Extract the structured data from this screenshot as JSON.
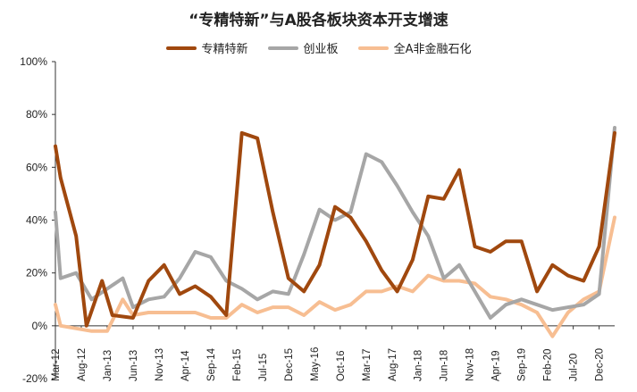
{
  "chart_data": {
    "type": "line",
    "title": "“专精特新”与A股各板块资本开支增速",
    "xlabel": "",
    "ylabel": "",
    "ylim": [
      -20,
      100
    ],
    "yticks": [
      "-20%",
      "0%",
      "20%",
      "40%",
      "60%",
      "80%",
      "100%"
    ],
    "ytick_values": [
      -20,
      0,
      20,
      40,
      60,
      80,
      100
    ],
    "x_tick_labels": [
      "Mar-12",
      "Aug-12",
      "Jan-13",
      "Jun-13",
      "Nov-13",
      "Apr-14",
      "Sep-14",
      "Feb-15",
      "Jul-15",
      "Dec-15",
      "May-16",
      "Oct-16",
      "Mar-17",
      "Aug-17",
      "Jan-18",
      "Jun-18",
      "Nov-18",
      "Apr-19",
      "Sep-19",
      "Feb-20",
      "Jul-20",
      "Dec-20"
    ],
    "x_tick_positions": [
      0,
      5,
      10,
      15,
      20,
      25,
      30,
      35,
      40,
      45,
      50,
      55,
      60,
      65,
      70,
      75,
      80,
      85,
      90,
      95,
      100,
      105
    ],
    "x_max": 108,
    "legend_position": "top-center",
    "grid": false,
    "series": [
      {
        "name": "专精特新",
        "color": "#A0480E",
        "x": [
          0,
          1,
          4,
          6,
          9,
          11,
          15,
          18,
          21,
          24,
          27,
          30,
          33,
          36,
          39,
          42,
          45,
          48,
          51,
          54,
          57,
          60,
          63,
          66,
          69,
          72,
          75,
          78,
          81,
          84,
          87,
          90,
          93,
          96,
          99,
          102,
          105,
          108
        ],
        "y": [
          68,
          56,
          34,
          0,
          17,
          4,
          3,
          17,
          23,
          12,
          15,
          11,
          4,
          73,
          71,
          43,
          18,
          13,
          23,
          45,
          41,
          32,
          21,
          13,
          25,
          49,
          48,
          59,
          30,
          28,
          32,
          32,
          13,
          23,
          19,
          17,
          30,
          73
        ]
      },
      {
        "name": "创业板",
        "color": "#A6A6A6",
        "x": [
          0,
          1,
          4,
          7,
          10,
          13,
          15,
          18,
          21,
          24,
          27,
          30,
          33,
          36,
          39,
          42,
          45,
          48,
          51,
          54,
          57,
          60,
          63,
          66,
          69,
          72,
          75,
          78,
          81,
          84,
          87,
          90,
          93,
          96,
          99,
          102,
          105,
          108
        ],
        "y": [
          43,
          18,
          20,
          10,
          14,
          18,
          7,
          10,
          11,
          18,
          28,
          26,
          17,
          14,
          10,
          13,
          12,
          27,
          44,
          40,
          43,
          65,
          62,
          53,
          43,
          34,
          18,
          23,
          13,
          3,
          8,
          10,
          8,
          6,
          7,
          8,
          12,
          75
        ]
      },
      {
        "name": "全A非金融石化",
        "color": "#F7BE92",
        "x": [
          0,
          1,
          4,
          7,
          10,
          13,
          15,
          18,
          21,
          24,
          27,
          30,
          33,
          36,
          39,
          42,
          45,
          48,
          51,
          54,
          57,
          60,
          63,
          66,
          69,
          72,
          75,
          78,
          81,
          84,
          87,
          90,
          93,
          96,
          99,
          102,
          105,
          108
        ],
        "y": [
          8,
          0,
          -1,
          -2,
          -2,
          10,
          4,
          5,
          5,
          5,
          5,
          3,
          3,
          8,
          5,
          7,
          7,
          4,
          9,
          6,
          8,
          13,
          13,
          15,
          13,
          19,
          17,
          17,
          16,
          11,
          10,
          8,
          5,
          -4,
          5,
          10,
          13,
          41
        ]
      }
    ]
  }
}
